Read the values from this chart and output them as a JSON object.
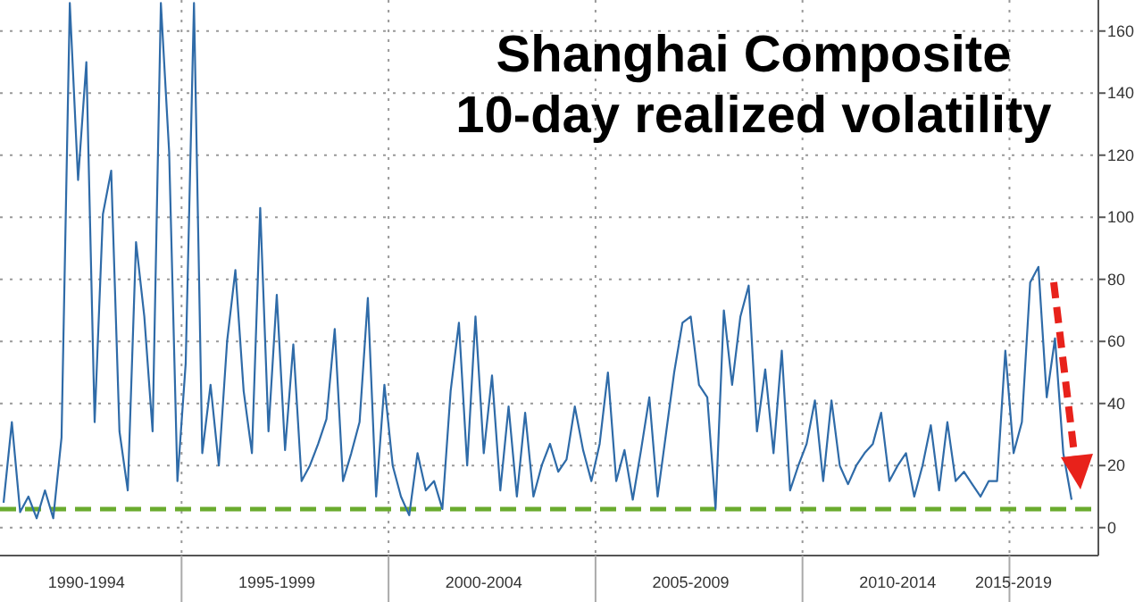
{
  "chart_data": {
    "type": "line",
    "title": "Shanghai Composite",
    "subtitle": "10-day realized volatility",
    "categories": [
      null,
      null,
      null,
      null,
      null,
      null,
      null,
      null,
      null,
      null,
      "1990-1994",
      null,
      null,
      null,
      null,
      null,
      null,
      null,
      null,
      null,
      null,
      null,
      null,
      null,
      null,
      null,
      null,
      null,
      null,
      null,
      null,
      null,
      null,
      "1995-1999",
      null,
      null,
      null,
      null,
      null,
      null,
      null,
      null,
      null,
      null,
      null,
      null,
      null,
      null,
      null,
      null,
      null,
      null,
      null,
      null,
      null,
      null,
      null,
      null,
      "2000-2004",
      null,
      null,
      null,
      null,
      null,
      null,
      null,
      null,
      null,
      null,
      null,
      null,
      null,
      null,
      null,
      null,
      null,
      null,
      null,
      null,
      null,
      null,
      null,
      null,
      "2005-2009",
      null,
      null,
      null,
      null,
      null,
      null,
      null,
      null,
      null,
      null,
      null,
      null,
      null,
      null,
      null,
      null,
      null,
      null,
      null,
      null,
      null,
      null,
      null,
      null,
      "2010-2014",
      null,
      null,
      null,
      null,
      null,
      null,
      null,
      null,
      null,
      null,
      null,
      null,
      null,
      "2015-2019",
      null,
      null,
      null,
      null,
      null,
      null,
      null
    ],
    "series": [
      {
        "color": "#2f6ba8",
        "values": [
          8,
          34,
          5,
          10,
          3,
          12,
          3,
          29,
          169,
          112,
          150,
          34,
          101,
          115,
          31,
          12,
          92,
          68,
          31,
          169,
          121,
          15,
          53,
          169,
          24,
          46,
          20,
          60,
          83,
          44,
          24,
          103,
          31,
          75,
          25,
          59,
          15,
          20,
          27,
          35,
          64,
          15,
          24,
          34,
          74,
          10,
          46,
          20,
          10,
          4,
          24,
          12,
          15,
          6,
          44,
          66,
          20,
          68,
          24,
          49,
          12,
          39,
          10,
          37,
          10,
          20,
          27,
          18,
          22,
          39,
          25,
          15,
          27,
          50,
          15,
          25,
          9,
          25,
          42,
          10,
          30,
          50,
          66,
          68,
          46,
          42,
          6,
          70,
          46,
          68,
          78,
          31,
          51,
          24,
          57,
          12,
          20,
          27,
          41,
          15,
          41,
          20,
          14,
          20,
          24,
          27,
          37,
          15,
          20,
          24,
          10,
          20,
          33,
          12,
          34,
          15,
          18,
          14,
          10,
          15,
          15,
          57,
          24,
          34,
          79,
          84,
          42,
          61,
          24,
          9
        ]
      }
    ],
    "ylim": [
      -9,
      170
    ],
    "yticks": [
      0,
      20,
      40,
      60,
      80,
      100,
      120,
      140,
      160
    ],
    "ref_lines": [
      {
        "axis": "y",
        "value": 6,
        "color": "#6aab2e",
        "line_style": "dashed"
      }
    ],
    "grid": true,
    "marker": "none",
    "line_style": "solid"
  }
}
